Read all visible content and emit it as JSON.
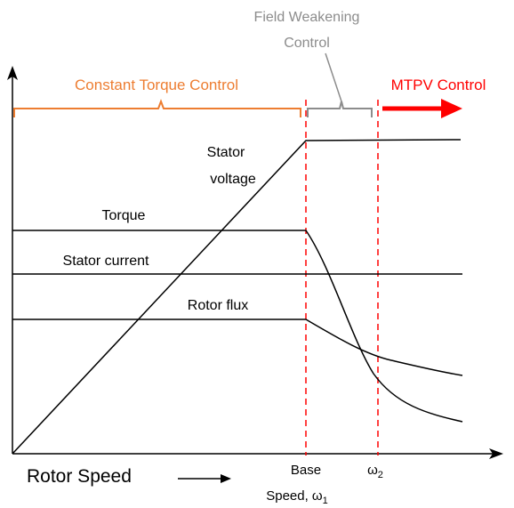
{
  "regions": {
    "constant_torque": {
      "label": "Constant Torque Control",
      "color": "#ed7d31"
    },
    "field_weakening": {
      "label_line1": "Field Weakening",
      "label_line2": "Control",
      "color": "#8c8c8c"
    },
    "mtpv": {
      "label": "MTPV Control",
      "color": "#ff0000"
    }
  },
  "curves": {
    "stator_voltage": {
      "label_line1": "Stator",
      "label_line2": "voltage"
    },
    "torque": {
      "label": "Torque"
    },
    "stator_current": {
      "label": "Stator current"
    },
    "rotor_flux": {
      "label": "Rotor flux"
    }
  },
  "axis": {
    "x_label": "Rotor Speed",
    "base_speed_line1": "Base",
    "base_speed_line2": "Speed, ω",
    "base_speed_sub": "1",
    "omega2": "ω",
    "omega2_sub": "2"
  },
  "colors": {
    "lines": "#000000",
    "boundary": "#ff0000"
  }
}
